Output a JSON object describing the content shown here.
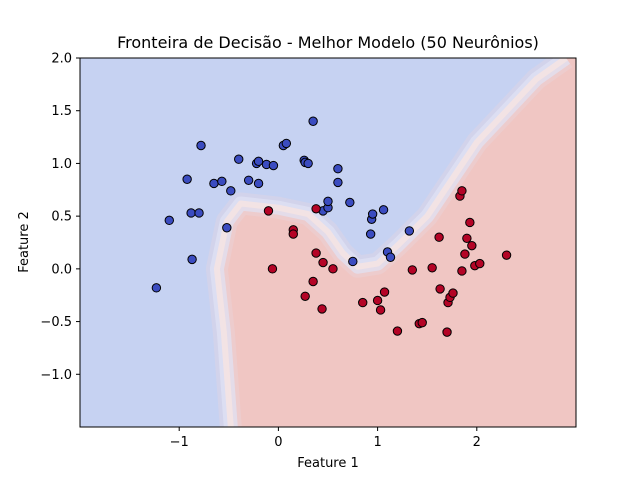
{
  "chart_data": {
    "type": "scatter",
    "title": "Fronteira de Decisão - Melhor Modelo (50 Neurônios)",
    "xlabel": "Feature 1",
    "ylabel": "Feature 2",
    "xlim": [
      -2.0,
      3.0
    ],
    "ylim": [
      -1.5,
      2.0
    ],
    "x_ticks": [
      -1,
      0,
      1,
      2
    ],
    "y_ticks": [
      -1.0,
      -0.5,
      0.0,
      0.5,
      1.0,
      1.5,
      2.0
    ],
    "x_tick_labels": [
      "−1",
      "0",
      "1",
      "2"
    ],
    "y_tick_labels": [
      "−1.0",
      "−0.5",
      "0.0",
      "0.5",
      "1.0",
      "1.5",
      "2.0"
    ],
    "grid": false,
    "background": {
      "type": "decision-regions",
      "class0_color": "#c6d2f2",
      "class1_color": "#f0c6c3",
      "boundary": [
        [
          -0.48,
          -1.5
        ],
        [
          -0.55,
          -0.6
        ],
        [
          -0.62,
          0.0
        ],
        [
          -0.52,
          0.45
        ],
        [
          -0.38,
          0.62
        ],
        [
          0.0,
          0.58
        ],
        [
          0.3,
          0.52
        ],
        [
          0.5,
          0.35
        ],
        [
          0.65,
          0.15
        ],
        [
          0.8,
          0.02
        ],
        [
          1.0,
          0.05
        ],
        [
          1.2,
          0.22
        ],
        [
          1.5,
          0.5
        ],
        [
          2.0,
          1.2
        ],
        [
          2.6,
          1.8
        ],
        [
          2.9,
          2.0
        ]
      ]
    },
    "series": [
      {
        "class": 0,
        "color": "#3b4cc0",
        "points": [
          [
            -1.23,
            -0.18
          ],
          [
            -1.1,
            0.46
          ],
          [
            -0.92,
            0.85
          ],
          [
            -0.88,
            0.53
          ],
          [
            -0.87,
            0.09
          ],
          [
            -0.8,
            0.53
          ],
          [
            -0.78,
            1.17
          ],
          [
            -0.65,
            0.81
          ],
          [
            -0.57,
            0.83
          ],
          [
            -0.52,
            0.39
          ],
          [
            -0.48,
            0.74
          ],
          [
            -0.4,
            1.04
          ],
          [
            -0.3,
            0.84
          ],
          [
            -0.22,
            1.0
          ],
          [
            -0.2,
            1.02
          ],
          [
            -0.2,
            0.81
          ],
          [
            -0.12,
            0.99
          ],
          [
            -0.05,
            0.98
          ],
          [
            0.05,
            1.17
          ],
          [
            0.08,
            1.19
          ],
          [
            0.26,
            1.03
          ],
          [
            0.27,
            1.01
          ],
          [
            0.3,
            1.0
          ],
          [
            0.35,
            1.4
          ],
          [
            0.45,
            0.55
          ],
          [
            0.5,
            0.58
          ],
          [
            0.5,
            0.64
          ],
          [
            0.6,
            0.95
          ],
          [
            0.6,
            0.82
          ],
          [
            0.72,
            0.63
          ],
          [
            0.75,
            0.07
          ],
          [
            0.93,
            0.33
          ],
          [
            0.94,
            0.47
          ],
          [
            0.95,
            0.52
          ],
          [
            1.06,
            0.56
          ],
          [
            1.1,
            0.16
          ],
          [
            1.13,
            0.11
          ],
          [
            1.32,
            0.36
          ]
        ]
      },
      {
        "class": 1,
        "color": "#b40426",
        "points": [
          [
            -0.1,
            0.55
          ],
          [
            -0.06,
            0.0
          ],
          [
            0.15,
            0.37
          ],
          [
            0.15,
            0.33
          ],
          [
            0.27,
            -0.26
          ],
          [
            0.35,
            -0.12
          ],
          [
            0.38,
            0.15
          ],
          [
            0.38,
            0.57
          ],
          [
            0.44,
            -0.38
          ],
          [
            0.45,
            0.06
          ],
          [
            0.55,
            0.0
          ],
          [
            0.85,
            -0.32
          ],
          [
            1.0,
            -0.3
          ],
          [
            1.03,
            -0.39
          ],
          [
            1.07,
            -0.22
          ],
          [
            1.2,
            -0.59
          ],
          [
            1.35,
            -0.01
          ],
          [
            1.42,
            -0.52
          ],
          [
            1.45,
            -0.51
          ],
          [
            1.55,
            0.01
          ],
          [
            1.62,
            0.3
          ],
          [
            1.63,
            -0.19
          ],
          [
            1.7,
            -0.6
          ],
          [
            1.71,
            -0.32
          ],
          [
            1.73,
            -0.27
          ],
          [
            1.76,
            -0.23
          ],
          [
            1.83,
            0.69
          ],
          [
            1.85,
            0.74
          ],
          [
            1.85,
            -0.02
          ],
          [
            1.88,
            0.14
          ],
          [
            1.9,
            0.29
          ],
          [
            1.93,
            0.44
          ],
          [
            1.95,
            0.22
          ],
          [
            1.98,
            0.03
          ],
          [
            2.03,
            0.05
          ],
          [
            2.3,
            0.13
          ]
        ]
      }
    ]
  }
}
